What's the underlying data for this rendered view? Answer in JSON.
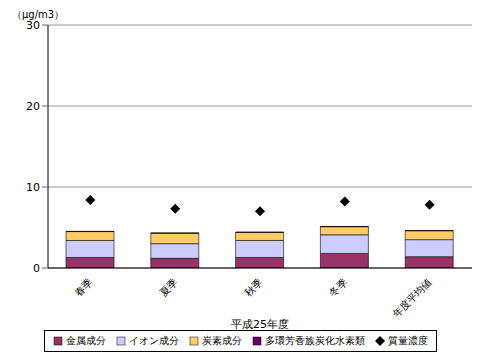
{
  "chart_data": {
    "type": "bar",
    "stacked": true,
    "grid": true,
    "legend": "bottom",
    "x_label": "平成25年度",
    "y_label": "（μg/m3）",
    "categories": [
      "春季",
      "夏季",
      "秋季",
      "冬季",
      "年度平均値"
    ],
    "ylim": [
      0,
      30
    ],
    "yticks": [
      0,
      10,
      20,
      30
    ],
    "series": [
      {
        "name": "金属成分",
        "type": "bar",
        "color": "#993366",
        "values": [
          1.3,
          1.2,
          1.3,
          1.8,
          1.4
        ]
      },
      {
        "name": "イオン成分",
        "type": "bar",
        "color": "#ccccff",
        "values": [
          2.1,
          1.8,
          2.1,
          2.3,
          2.1
        ]
      },
      {
        "name": "炭素成分",
        "type": "bar",
        "color": "#ffcc66",
        "values": [
          1.1,
          1.3,
          1.0,
          1.0,
          1.1
        ]
      },
      {
        "name": "多環芳香族炭化水素類",
        "type": "bar",
        "color": "#660066",
        "values": [
          0.03,
          0.03,
          0.03,
          0.03,
          0.03
        ]
      },
      {
        "name": "質量濃度",
        "type": "scatter",
        "marker": "diamond",
        "color": "#000000",
        "values": [
          8.4,
          7.3,
          7.0,
          8.2,
          7.8
        ]
      }
    ]
  }
}
